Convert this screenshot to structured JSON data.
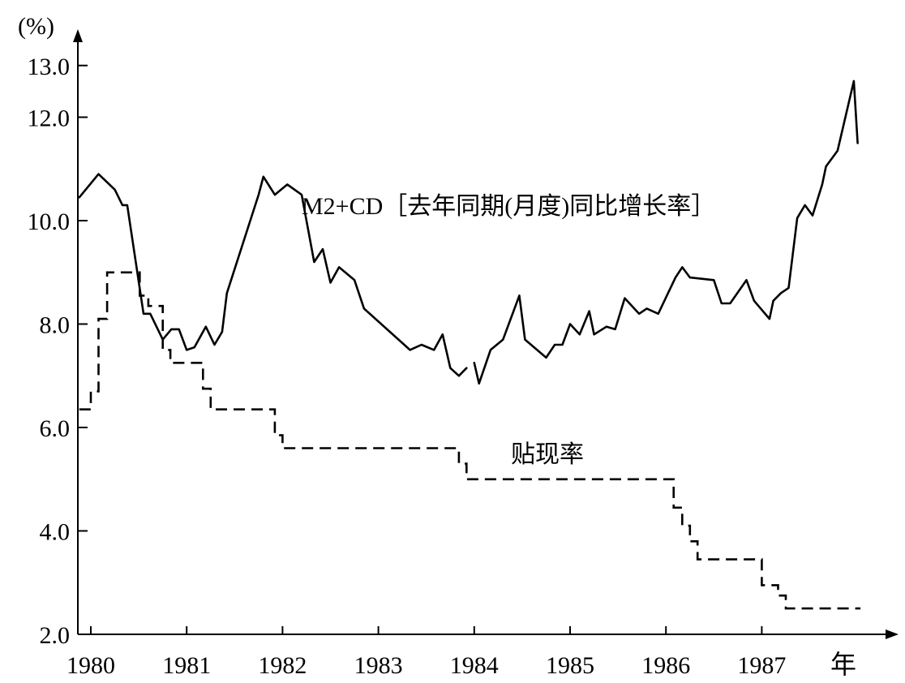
{
  "chart_data": {
    "type": "line",
    "title": "",
    "ylabel": "(%)",
    "xlabel": "年",
    "ylim": [
      2.0,
      13.5
    ],
    "xlim": [
      1980.0,
      1988.2
    ],
    "grid": false,
    "yticks": [
      {
        "value": 2.0,
        "label": "2.0"
      },
      {
        "value": 4.0,
        "label": "4.0"
      },
      {
        "value": 6.0,
        "label": "6.0"
      },
      {
        "value": 8.0,
        "label": "8.0"
      },
      {
        "value": 10.0,
        "label": "10.0"
      },
      {
        "value": 12.0,
        "label": "12.0"
      },
      {
        "value": 13.0,
        "label": "13.0"
      }
    ],
    "xticks": [
      {
        "value": 1980,
        "label": "1980"
      },
      {
        "value": 1981,
        "label": "1981"
      },
      {
        "value": 1982,
        "label": "1982"
      },
      {
        "value": 1983,
        "label": "1983"
      },
      {
        "value": 1984,
        "label": "1984"
      },
      {
        "value": 1985,
        "label": "1985"
      },
      {
        "value": 1986,
        "label": "1986"
      },
      {
        "value": 1987,
        "label": "1987"
      }
    ],
    "series": [
      {
        "name": "M2+CD［去年同期(月度)同比增长率］",
        "style": "solid",
        "color": "#000000",
        "segments": [
          [
            [
              1979.88,
              10.45
            ],
            [
              1980.08,
              10.9
            ],
            [
              1980.25,
              10.6
            ],
            [
              1980.33,
              10.3
            ],
            [
              1980.38,
              10.3
            ],
            [
              1980.55,
              8.2
            ],
            [
              1980.62,
              8.2
            ],
            [
              1980.75,
              7.7
            ],
            [
              1980.84,
              7.9
            ],
            [
              1980.92,
              7.9
            ],
            [
              1981.0,
              7.5
            ],
            [
              1981.08,
              7.55
            ],
            [
              1981.2,
              7.95
            ],
            [
              1981.29,
              7.6
            ],
            [
              1981.37,
              7.85
            ],
            [
              1981.42,
              8.6
            ],
            [
              1981.75,
              10.5
            ],
            [
              1981.8,
              10.85
            ],
            [
              1981.92,
              10.5
            ],
            [
              1982.05,
              10.7
            ],
            [
              1982.2,
              10.5
            ],
            [
              1982.33,
              9.2
            ],
            [
              1982.42,
              9.45
            ],
            [
              1982.5,
              8.8
            ],
            [
              1982.59,
              9.1
            ],
            [
              1982.75,
              8.85
            ],
            [
              1982.85,
              8.3
            ],
            [
              1983.33,
              7.5
            ],
            [
              1983.45,
              7.6
            ],
            [
              1983.58,
              7.5
            ],
            [
              1983.67,
              7.8
            ],
            [
              1983.75,
              7.15
            ],
            [
              1983.84,
              7.0
            ],
            [
              1983.92,
              7.15
            ]
          ],
          [
            [
              1984.0,
              7.25
            ],
            [
              1984.05,
              6.85
            ],
            [
              1984.17,
              7.5
            ],
            [
              1984.3,
              7.7
            ],
            [
              1984.47,
              8.55
            ],
            [
              1984.53,
              7.7
            ],
            [
              1984.75,
              7.35
            ],
            [
              1984.84,
              7.6
            ],
            [
              1984.92,
              7.6
            ],
            [
              1985.0,
              8.0
            ],
            [
              1985.1,
              7.8
            ],
            [
              1985.2,
              8.25
            ],
            [
              1985.25,
              7.8
            ],
            [
              1985.38,
              7.95
            ],
            [
              1985.47,
              7.9
            ],
            [
              1985.57,
              8.5
            ],
            [
              1985.72,
              8.2
            ],
            [
              1985.8,
              8.3
            ],
            [
              1985.92,
              8.2
            ],
            [
              1986.1,
              8.9
            ],
            [
              1986.17,
              9.1
            ],
            [
              1986.25,
              8.9
            ],
            [
              1986.5,
              8.85
            ],
            [
              1986.58,
              8.4
            ],
            [
              1986.67,
              8.4
            ],
            [
              1986.84,
              8.85
            ],
            [
              1986.92,
              8.45
            ],
            [
              1987.08,
              8.1
            ],
            [
              1987.12,
              8.45
            ],
            [
              1987.2,
              8.6
            ],
            [
              1987.28,
              8.7
            ],
            [
              1987.37,
              10.05
            ],
            [
              1987.45,
              10.3
            ],
            [
              1987.53,
              10.1
            ],
            [
              1987.63,
              10.7
            ],
            [
              1987.67,
              11.05
            ],
            [
              1987.79,
              11.35
            ],
            [
              1987.96,
              12.7
            ],
            [
              1988.0,
              11.5
            ]
          ]
        ]
      },
      {
        "name": "贴现率",
        "style": "dashed",
        "color": "#000000",
        "points": [
          [
            1979.88,
            6.35
          ],
          [
            1980.0,
            6.35
          ],
          [
            1980.0,
            6.7
          ],
          [
            1980.08,
            6.7
          ],
          [
            1980.08,
            8.1
          ],
          [
            1980.17,
            8.1
          ],
          [
            1980.17,
            9.0
          ],
          [
            1980.51,
            9.0
          ],
          [
            1980.51,
            8.55
          ],
          [
            1980.6,
            8.55
          ],
          [
            1980.6,
            8.35
          ],
          [
            1980.75,
            8.35
          ],
          [
            1980.75,
            7.5
          ],
          [
            1980.83,
            7.5
          ],
          [
            1980.83,
            7.25
          ],
          [
            1981.17,
            7.25
          ],
          [
            1981.17,
            6.75
          ],
          [
            1981.25,
            6.75
          ],
          [
            1981.25,
            6.35
          ],
          [
            1981.92,
            6.35
          ],
          [
            1981.92,
            5.85
          ],
          [
            1982.0,
            5.85
          ],
          [
            1982.0,
            5.6
          ],
          [
            1983.84,
            5.6
          ],
          [
            1983.84,
            5.3
          ],
          [
            1983.92,
            5.3
          ],
          [
            1983.92,
            5.0
          ],
          [
            1986.08,
            5.0
          ],
          [
            1986.08,
            4.45
          ],
          [
            1986.17,
            4.45
          ],
          [
            1986.17,
            4.1
          ],
          [
            1986.25,
            4.1
          ],
          [
            1986.25,
            3.8
          ],
          [
            1986.33,
            3.8
          ],
          [
            1986.33,
            3.45
          ],
          [
            1987.0,
            3.45
          ],
          [
            1987.0,
            2.95
          ],
          [
            1987.17,
            2.95
          ],
          [
            1987.17,
            2.75
          ],
          [
            1987.25,
            2.75
          ],
          [
            1987.25,
            2.5
          ],
          [
            1988.03,
            2.5
          ]
        ]
      }
    ],
    "annotations": {
      "m2_label": "M2+CD［去年同期(月度)同比增长率］",
      "discount_label": "贴现率"
    }
  }
}
